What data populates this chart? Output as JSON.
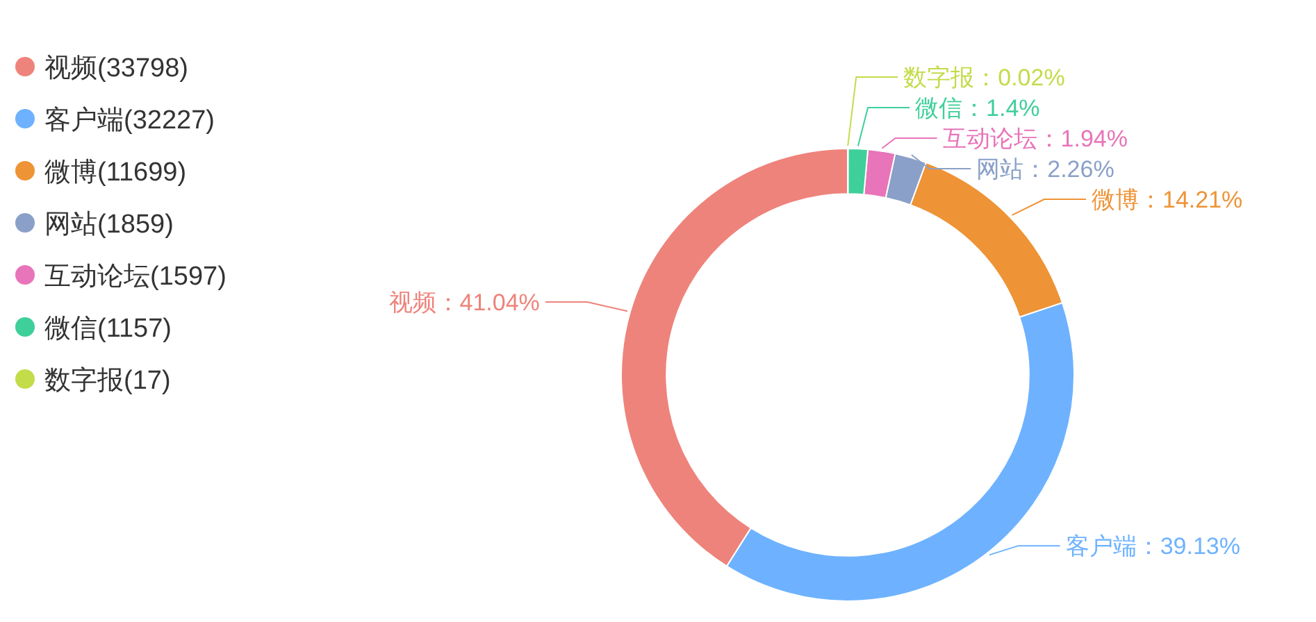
{
  "chart_data": {
    "type": "donut",
    "categories": [
      "视频(33798)",
      "客户端(32227)",
      "微博(11699)",
      "网站(1859)",
      "互动论坛(1597)",
      "微信(1157)",
      "数字报(17)"
    ],
    "values": [
      41.04,
      39.13,
      14.21,
      2.26,
      1.94,
      1.4,
      0.02
    ],
    "colors": [
      "#ee837b",
      "#6eb2ff",
      "#ee9336",
      "#8aa0c8",
      "#e874b9",
      "#3ecf9a",
      "#c2dc4a"
    ],
    "value_labels": [
      "视频：41.04%",
      "客户端：39.13%",
      "微博：14.21%",
      "网站：2.26%",
      "互动论坛：1.94%",
      "微信：1.4%",
      "数字报：0.02%"
    ],
    "legend": "top left"
  }
}
